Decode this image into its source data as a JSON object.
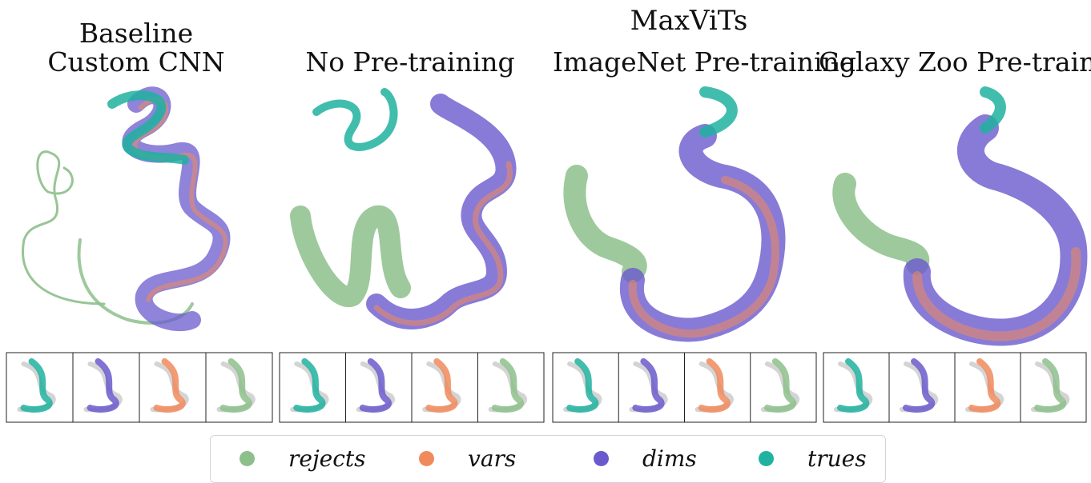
{
  "chart_data": {
    "type": "scatter",
    "group_title": "MaxViTs",
    "panels": [
      {
        "title_lines": [
          "Baseline",
          "Custom CNN"
        ]
      },
      {
        "title_lines": [
          "No Pre-training"
        ]
      },
      {
        "title_lines": [
          "ImageNet Pre-training"
        ]
      },
      {
        "title_lines": [
          "Galaxy Zoo Pre-training"
        ]
      }
    ],
    "legend": [
      {
        "label": "rejects",
        "color": "#8dbf8b"
      },
      {
        "label": "vars",
        "color": "#f08a5d"
      },
      {
        "label": "dims",
        "color": "#6a5acd"
      },
      {
        "label": "trues",
        "color": "#20b2a0"
      }
    ],
    "legend_position": "bottom",
    "grid": false
  }
}
